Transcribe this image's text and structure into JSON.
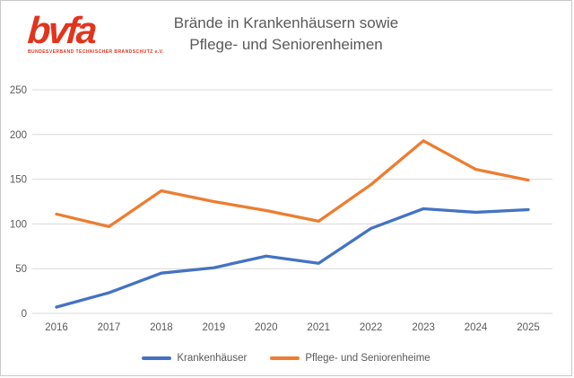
{
  "logo": {
    "wordmark": "bvfa",
    "subtitle": "BUNDESVERBAND TECHNISCHER BRANDSCHUTZ e.V.",
    "color": "#e2341d"
  },
  "title": {
    "line1": "Brände in Krankenhäusern sowie",
    "line2": "Pflege- und Seniorenheimen",
    "color": "#595959"
  },
  "chart_data": {
    "type": "line",
    "categories": [
      "2016",
      "2017",
      "2018",
      "2019",
      "2020",
      "2021",
      "2022",
      "2023",
      "2024",
      "2025"
    ],
    "series": [
      {
        "name": "Krankenhäuser",
        "color": "#4472C4",
        "values": [
          7,
          23,
          45,
          51,
          64,
          56,
          95,
          117,
          113,
          116
        ]
      },
      {
        "name": "Pflege- und Seniorenheime",
        "color": "#ED7D31",
        "values": [
          111,
          97,
          137,
          125,
          115,
          103,
          144,
          193,
          161,
          149
        ]
      }
    ],
    "title": "Brände in Krankenhäusern sowie Pflege- und Seniorenheimen",
    "xlabel": "",
    "ylabel": "",
    "ylim": [
      0,
      250
    ],
    "yticks": [
      0,
      50,
      100,
      150,
      200,
      250
    ],
    "grid": true,
    "gridline_color": "#d9d9d9",
    "axis_text_color": "#595959",
    "legend_position": "bottom"
  }
}
